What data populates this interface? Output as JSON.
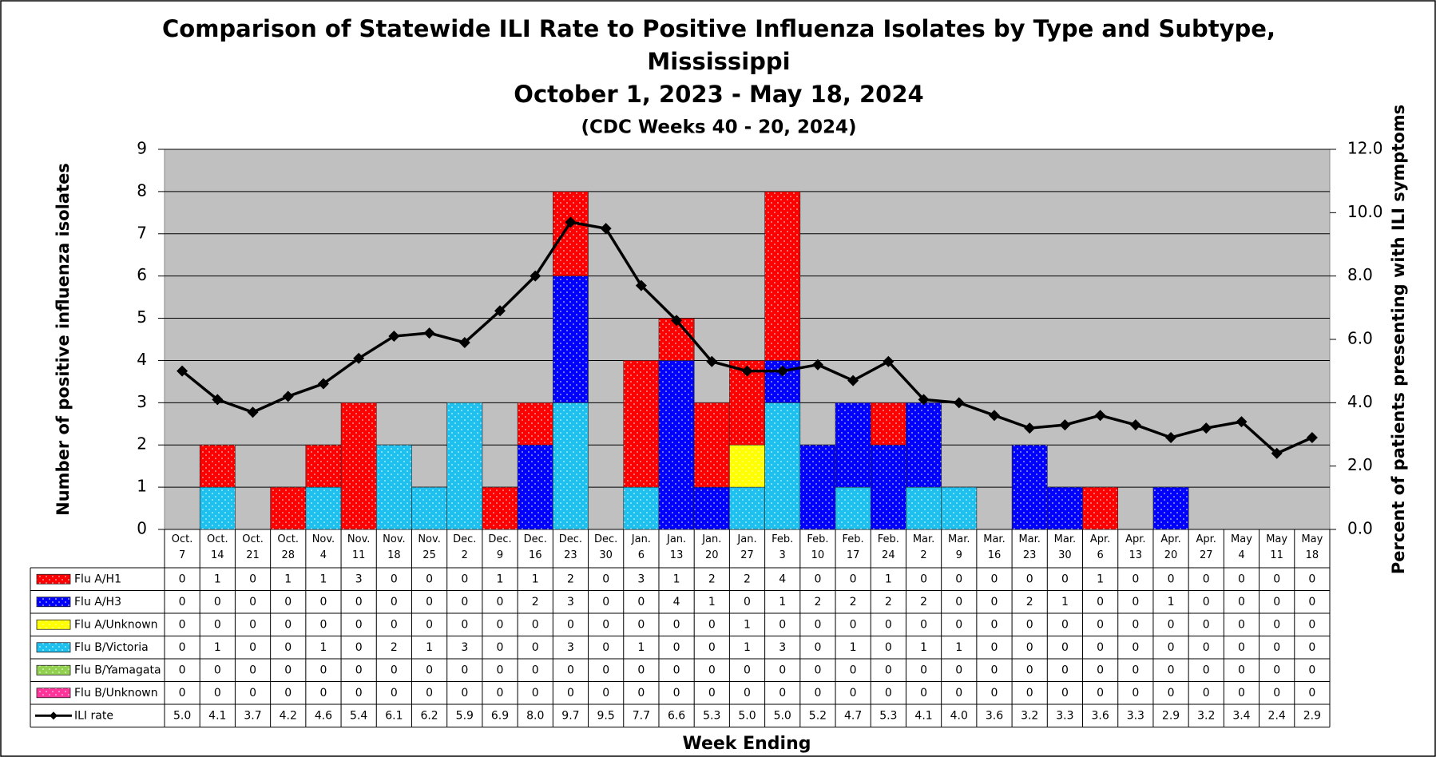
{
  "chart_data": {
    "type": "bar",
    "title": [
      "Comparison of Statewide ILI Rate to Positive Influenza Isolates by Type and Subtype,",
      "Mississippi"
    ],
    "subtitle": "October 1, 2023 - May 18, 2024",
    "note": "(CDC Weeks 40 - 20, 2024)",
    "x_label": "Week Ending",
    "y_label": "Number of positive influenza isolates",
    "y2_label": "Percent of patients presenting with ILI symptoms",
    "categories": [
      "Oct. 7",
      "Oct. 14",
      "Oct. 21",
      "Oct. 28",
      "Nov. 4",
      "Nov. 11",
      "Nov. 18",
      "Nov. 25",
      "Dec. 2",
      "Dec. 9",
      "Dec. 16",
      "Dec. 23",
      "Dec. 30",
      "Jan. 6",
      "Jan. 13",
      "Jan. 20",
      "Jan. 27",
      "Feb. 3",
      "Feb. 10",
      "Feb. 17",
      "Feb. 24",
      "Mar. 2",
      "Mar. 9",
      "Mar. 16",
      "Mar. 23",
      "Mar. 30",
      "Apr. 6",
      "Apr. 13",
      "Apr. 20",
      "Apr. 27",
      "May 4",
      "May 11",
      "May 18"
    ],
    "series": [
      {
        "name": "Flu A/H1",
        "color": "#ff0000",
        "values": [
          0,
          1,
          0,
          1,
          1,
          3,
          0,
          0,
          0,
          1,
          1,
          2,
          0,
          3,
          1,
          2,
          2,
          4,
          0,
          0,
          1,
          0,
          0,
          0,
          0,
          0,
          1,
          0,
          0,
          0,
          0,
          0,
          0
        ]
      },
      {
        "name": "Flu A/H3",
        "color": "#0000ff",
        "values": [
          0,
          0,
          0,
          0,
          0,
          0,
          0,
          0,
          0,
          0,
          2,
          3,
          0,
          0,
          4,
          1,
          0,
          1,
          2,
          2,
          2,
          2,
          0,
          0,
          2,
          1,
          0,
          0,
          1,
          0,
          0,
          0,
          0
        ]
      },
      {
        "name": "Flu A/Unknown",
        "color": "#ffff00",
        "values": [
          0,
          0,
          0,
          0,
          0,
          0,
          0,
          0,
          0,
          0,
          0,
          0,
          0,
          0,
          0,
          0,
          1,
          0,
          0,
          0,
          0,
          0,
          0,
          0,
          0,
          0,
          0,
          0,
          0,
          0,
          0,
          0,
          0
        ]
      },
      {
        "name": "Flu B/Victoria",
        "color": "#1ec0f0",
        "values": [
          0,
          1,
          0,
          0,
          1,
          0,
          2,
          1,
          3,
          0,
          0,
          3,
          0,
          1,
          0,
          0,
          1,
          3,
          0,
          1,
          0,
          1,
          1,
          0,
          0,
          0,
          0,
          0,
          0,
          0,
          0,
          0,
          0
        ]
      },
      {
        "name": "Flu B/Yamagata",
        "color": "#92d050",
        "values": [
          0,
          0,
          0,
          0,
          0,
          0,
          0,
          0,
          0,
          0,
          0,
          0,
          0,
          0,
          0,
          0,
          0,
          0,
          0,
          0,
          0,
          0,
          0,
          0,
          0,
          0,
          0,
          0,
          0,
          0,
          0,
          0,
          0
        ]
      },
      {
        "name": "Flu B/Unknown",
        "color": "#ff3399",
        "values": [
          0,
          0,
          0,
          0,
          0,
          0,
          0,
          0,
          0,
          0,
          0,
          0,
          0,
          0,
          0,
          0,
          0,
          0,
          0,
          0,
          0,
          0,
          0,
          0,
          0,
          0,
          0,
          0,
          0,
          0,
          0,
          0,
          0
        ]
      },
      {
        "name": "ILI rate",
        "color": "#000000",
        "type": "line",
        "axis": "y2",
        "values": [
          5.0,
          4.1,
          3.7,
          4.2,
          4.6,
          5.4,
          6.1,
          6.2,
          5.9,
          6.9,
          8.0,
          9.7,
          9.5,
          7.7,
          6.6,
          5.3,
          5.0,
          5.0,
          5.2,
          4.7,
          5.3,
          4.1,
          4.0,
          3.6,
          3.2,
          3.3,
          3.6,
          3.3,
          2.9,
          3.2,
          3.4,
          2.4,
          2.9
        ],
        "value_labels": [
          "5.0",
          "4.1",
          "3.7",
          "4.2",
          "4.6",
          "5.4",
          "6.1",
          "6.2",
          "5.9",
          "6.9",
          "8.0",
          "9.7",
          "9.5",
          "7.7",
          "6.6",
          "5.3",
          "5.0",
          "5.0",
          "5.2",
          "4.7",
          "5.3",
          "4.1",
          "4.0",
          "3.6",
          "3.2",
          "3.3",
          "3.6",
          "3.3",
          "2.9",
          "3.2",
          "3.4",
          "2.4",
          "2.9"
        ]
      }
    ],
    "ylim": [
      0,
      9
    ],
    "yticks": [
      0,
      1,
      2,
      3,
      4,
      5,
      6,
      7,
      8,
      9
    ],
    "y2lim": [
      0,
      12
    ],
    "y2ticks": [
      {
        "value": 0,
        "label": "0.0"
      },
      {
        "value": 2,
        "label": "2.0"
      },
      {
        "value": 4,
        "label": "4.0"
      },
      {
        "value": 6,
        "label": "6.0"
      },
      {
        "value": 8,
        "label": "8.0"
      },
      {
        "value": 10,
        "label": "10.0"
      },
      {
        "value": 12,
        "label": "12.0"
      }
    ],
    "grid": true,
    "stacked": true,
    "plot_background": "#c0c0c0"
  }
}
